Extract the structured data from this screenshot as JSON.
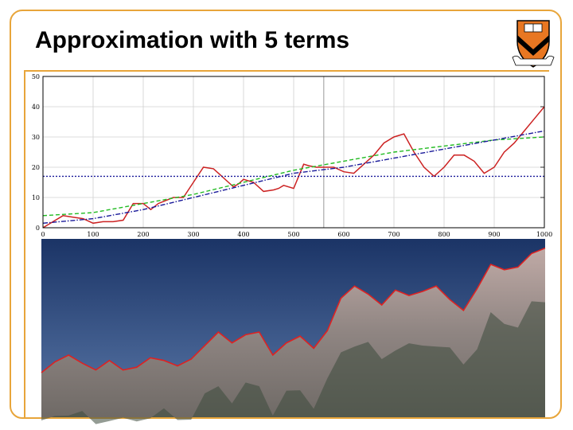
{
  "slide": {
    "title": "Approximation with 5 terms",
    "accent": "#e8a53a"
  },
  "logo": {
    "icon": "university-shield-icon",
    "colors": [
      "#e87722",
      "#000000"
    ]
  },
  "chart_data": {
    "type": "line",
    "title": "",
    "xlabel": "",
    "ylabel": "",
    "xlim": [
      0,
      1000
    ],
    "ylim": [
      0,
      50
    ],
    "xticks": [
      0,
      100,
      200,
      300,
      400,
      500,
      600,
      700,
      800,
      900,
      1000
    ],
    "yticks": [
      0,
      10,
      20,
      30,
      40,
      50
    ],
    "ytick_labels": [
      "0",
      "10",
      "20",
      "30",
      "40",
      "50"
    ],
    "grid": true,
    "vline_x": 560,
    "series": [
      {
        "color": "#cc2222",
        "style": "solid",
        "x": [
          0,
          20,
          40,
          60,
          80,
          100,
          120,
          140,
          160,
          180,
          200,
          215,
          230,
          245,
          260,
          280,
          300,
          320,
          340,
          350,
          370,
          380,
          390,
          400,
          420,
          440,
          460,
          470,
          480,
          500,
          520,
          530,
          545,
          560,
          580,
          600,
          620,
          640,
          660,
          680,
          700,
          720,
          740,
          760,
          780,
          800,
          820,
          840,
          860,
          880,
          900,
          920,
          940,
          960,
          980,
          1000
        ],
        "y": [
          0,
          2,
          4,
          3.5,
          3,
          1.5,
          2,
          2,
          2.5,
          8,
          8,
          6,
          8,
          9,
          10,
          10,
          15,
          20,
          19.5,
          18,
          15,
          13.5,
          14.5,
          16,
          15,
          12,
          12.5,
          13,
          14,
          13,
          21,
          20.5,
          20,
          20,
          20,
          18.5,
          18,
          21,
          24,
          28,
          30,
          31,
          25,
          20,
          17,
          20,
          24,
          24,
          22,
          18,
          20,
          25,
          28,
          32,
          36,
          40
        ]
      },
      {
        "color": "#1a1a9a",
        "style": "dotted",
        "x": [
          0,
          1000
        ],
        "y": [
          17,
          17
        ]
      },
      {
        "color": "#22bb22",
        "style": "dashed",
        "x": [
          0,
          100,
          200,
          300,
          400,
          500,
          600,
          700,
          800,
          900,
          1000
        ],
        "y": [
          4,
          5,
          8,
          11,
          15,
          19,
          22,
          25,
          27,
          29,
          30
        ]
      },
      {
        "color": "#1a1a9a",
        "style": "dashdot",
        "x": [
          0,
          100,
          200,
          300,
          400,
          500,
          600,
          700,
          800,
          900,
          1000
        ],
        "y": [
          1.5,
          3,
          6,
          10,
          14,
          18,
          20,
          23,
          26,
          29,
          32
        ]
      }
    ]
  },
  "photo": {
    "sky_color": "#1f3e74",
    "mountain_color": "#9c8f8a",
    "outline_color": "#dd2222",
    "ridge": [
      0,
      8,
      13,
      7,
      2,
      9,
      2,
      4,
      11,
      9,
      5,
      10,
      20,
      30,
      22,
      28,
      30,
      13,
      22,
      27,
      18,
      31,
      55,
      64,
      58,
      50,
      61,
      57,
      60,
      64,
      54,
      46,
      62,
      80,
      76,
      78,
      88,
      92
    ]
  }
}
